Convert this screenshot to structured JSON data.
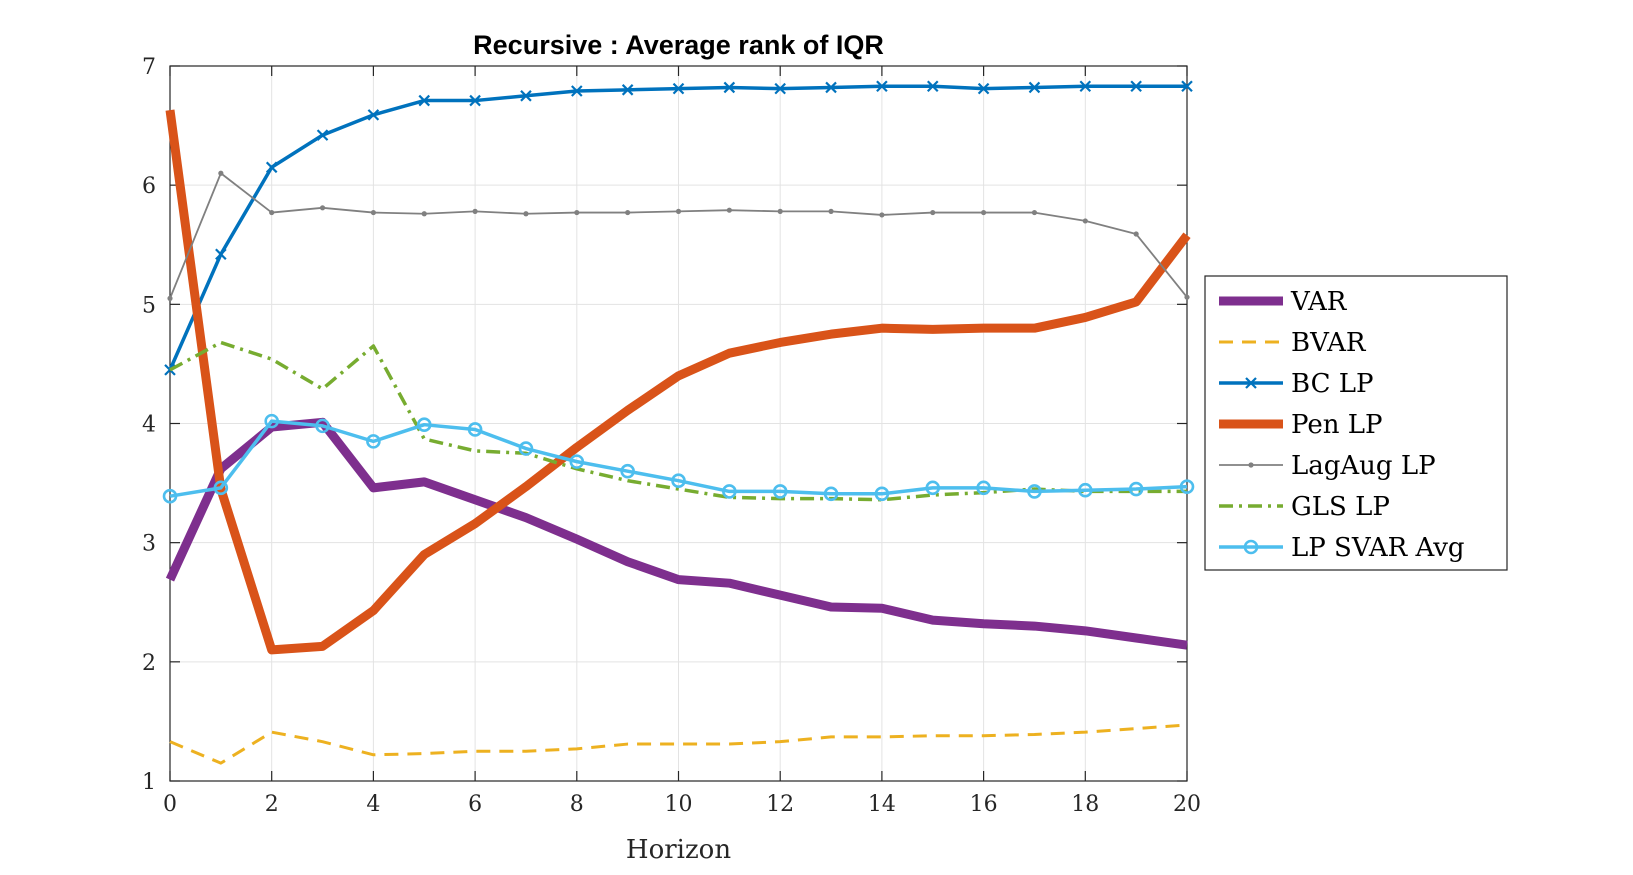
{
  "chart_data": {
    "type": "line",
    "title": "Recursive : Average rank of IQR",
    "xlabel": "Horizon",
    "ylabel": "",
    "xlim": [
      0,
      20
    ],
    "ylim": [
      1,
      7
    ],
    "xticks": [
      0,
      2,
      4,
      6,
      8,
      10,
      12,
      14,
      16,
      18,
      20
    ],
    "yticks": [
      1,
      2,
      3,
      4,
      5,
      6,
      7
    ],
    "grid": true,
    "legend": "outside-right",
    "x": [
      0,
      1,
      2,
      3,
      4,
      5,
      6,
      7,
      8,
      9,
      10,
      11,
      12,
      13,
      14,
      15,
      16,
      17,
      18,
      19,
      20
    ],
    "series": [
      {
        "name": "VAR",
        "color": "#7E2F8E",
        "style": "solid",
        "marker": "none",
        "width": 9,
        "values": [
          2.69,
          3.62,
          3.97,
          4.01,
          3.46,
          3.51,
          3.36,
          3.21,
          3.03,
          2.84,
          2.69,
          2.66,
          2.56,
          2.46,
          2.45,
          2.35,
          2.32,
          2.3,
          2.26,
          2.2,
          2.14
        ]
      },
      {
        "name": "BVAR",
        "color": "#EDB120",
        "style": "dashed",
        "marker": "none",
        "width": 3,
        "values": [
          1.33,
          1.15,
          1.41,
          1.33,
          1.22,
          1.23,
          1.25,
          1.25,
          1.27,
          1.31,
          1.31,
          1.31,
          1.33,
          1.37,
          1.37,
          1.38,
          1.38,
          1.39,
          1.41,
          1.44,
          1.47
        ]
      },
      {
        "name": "BC LP",
        "color": "#0072BD",
        "style": "solid",
        "marker": "x",
        "width": 3.5,
        "values": [
          4.45,
          5.42,
          6.15,
          6.42,
          6.59,
          6.71,
          6.71,
          6.75,
          6.79,
          6.8,
          6.81,
          6.82,
          6.81,
          6.82,
          6.83,
          6.83,
          6.81,
          6.82,
          6.83,
          6.83,
          6.83
        ]
      },
      {
        "name": "Pen LP",
        "color": "#D95319",
        "style": "solid",
        "marker": "none",
        "width": 9,
        "values": [
          6.63,
          3.45,
          2.1,
          2.13,
          2.43,
          2.9,
          3.16,
          3.47,
          3.8,
          4.11,
          4.4,
          4.59,
          4.68,
          4.75,
          4.8,
          4.79,
          4.8,
          4.8,
          4.89,
          5.02,
          5.58
        ]
      },
      {
        "name": "LagAug LP",
        "color": "#808080",
        "style": "solid",
        "marker": "dot",
        "width": 1.8,
        "values": [
          5.05,
          6.1,
          5.77,
          5.81,
          5.77,
          5.76,
          5.78,
          5.76,
          5.77,
          5.77,
          5.78,
          5.79,
          5.78,
          5.78,
          5.75,
          5.77,
          5.77,
          5.77,
          5.7,
          5.59,
          5.06
        ]
      },
      {
        "name": "GLS LP",
        "color": "#77AC30",
        "style": "dashdot",
        "marker": "none",
        "width": 3.5,
        "values": [
          4.45,
          4.68,
          4.54,
          4.29,
          4.65,
          3.87,
          3.77,
          3.75,
          3.62,
          3.52,
          3.45,
          3.38,
          3.37,
          3.37,
          3.36,
          3.4,
          3.42,
          3.45,
          3.43,
          3.43,
          3.43
        ]
      },
      {
        "name": "LP SVAR Avg",
        "color": "#4DBEEE",
        "style": "solid",
        "marker": "o",
        "width": 3.5,
        "values": [
          3.39,
          3.46,
          4.02,
          3.98,
          3.85,
          3.99,
          3.95,
          3.79,
          3.68,
          3.6,
          3.52,
          3.43,
          3.43,
          3.41,
          3.41,
          3.46,
          3.46,
          3.43,
          3.44,
          3.45,
          3.47
        ]
      }
    ]
  }
}
